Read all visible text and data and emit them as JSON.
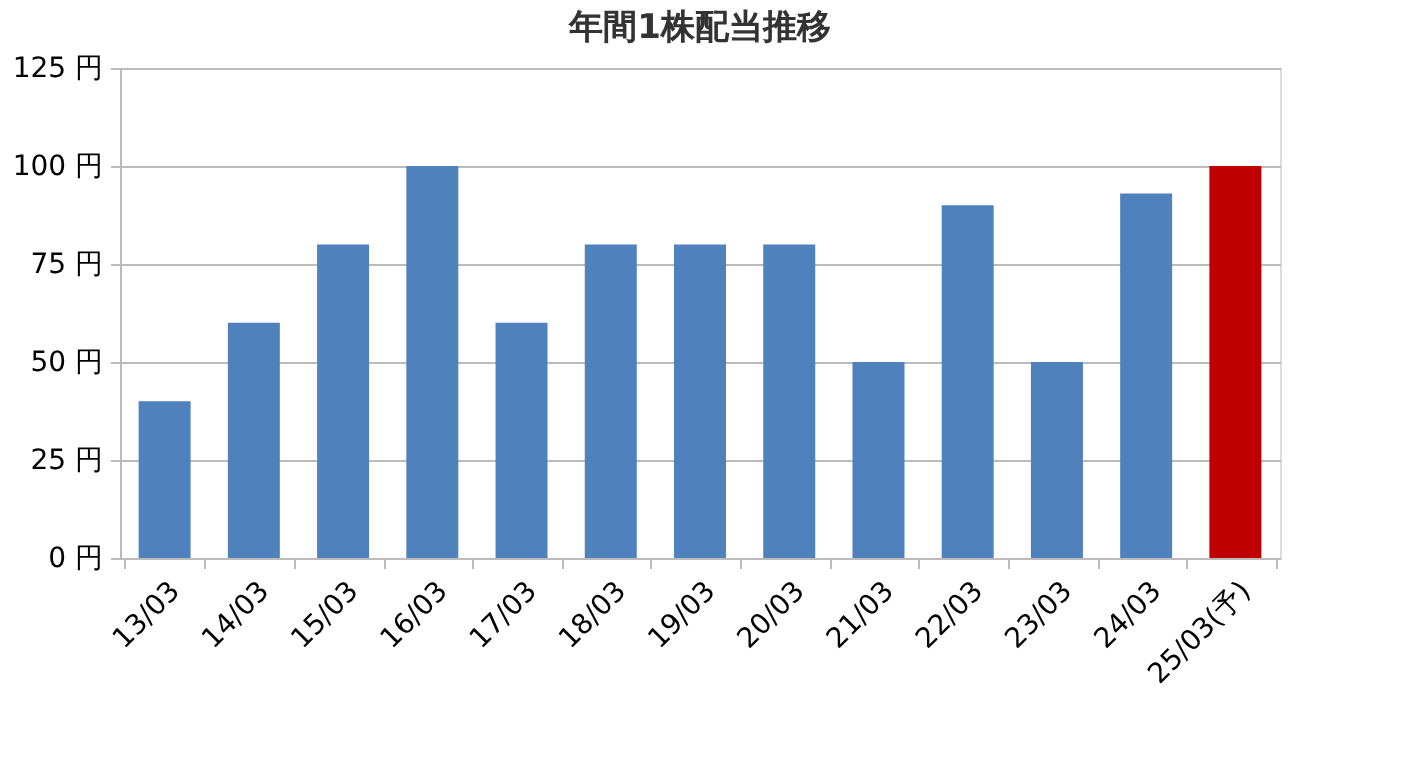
{
  "chart_data": {
    "type": "bar",
    "title": "年間1株配当推移",
    "categories": [
      "13/03",
      "14/03",
      "15/03",
      "16/03",
      "17/03",
      "18/03",
      "19/03",
      "20/03",
      "21/03",
      "22/03",
      "23/03",
      "24/03",
      "25/03(予)"
    ],
    "values": [
      40,
      60,
      80,
      100,
      60,
      80,
      80,
      80,
      50,
      90,
      50,
      93,
      100
    ],
    "colors": [
      "#4f81bd",
      "#4f81bd",
      "#4f81bd",
      "#4f81bd",
      "#4f81bd",
      "#4f81bd",
      "#4f81bd",
      "#4f81bd",
      "#4f81bd",
      "#4f81bd",
      "#4f81bd",
      "#4f81bd",
      "#c00000"
    ],
    "ylim": [
      0,
      125
    ],
    "yticks": [
      {
        "value": 0,
        "label": "0 円"
      },
      {
        "value": 25,
        "label": "25 円"
      },
      {
        "value": 50,
        "label": "50 円"
      },
      {
        "value": 75,
        "label": "75 円"
      },
      {
        "value": 100,
        "label": "100 円"
      },
      {
        "value": 125,
        "label": "125 円"
      }
    ],
    "grid": "y"
  }
}
